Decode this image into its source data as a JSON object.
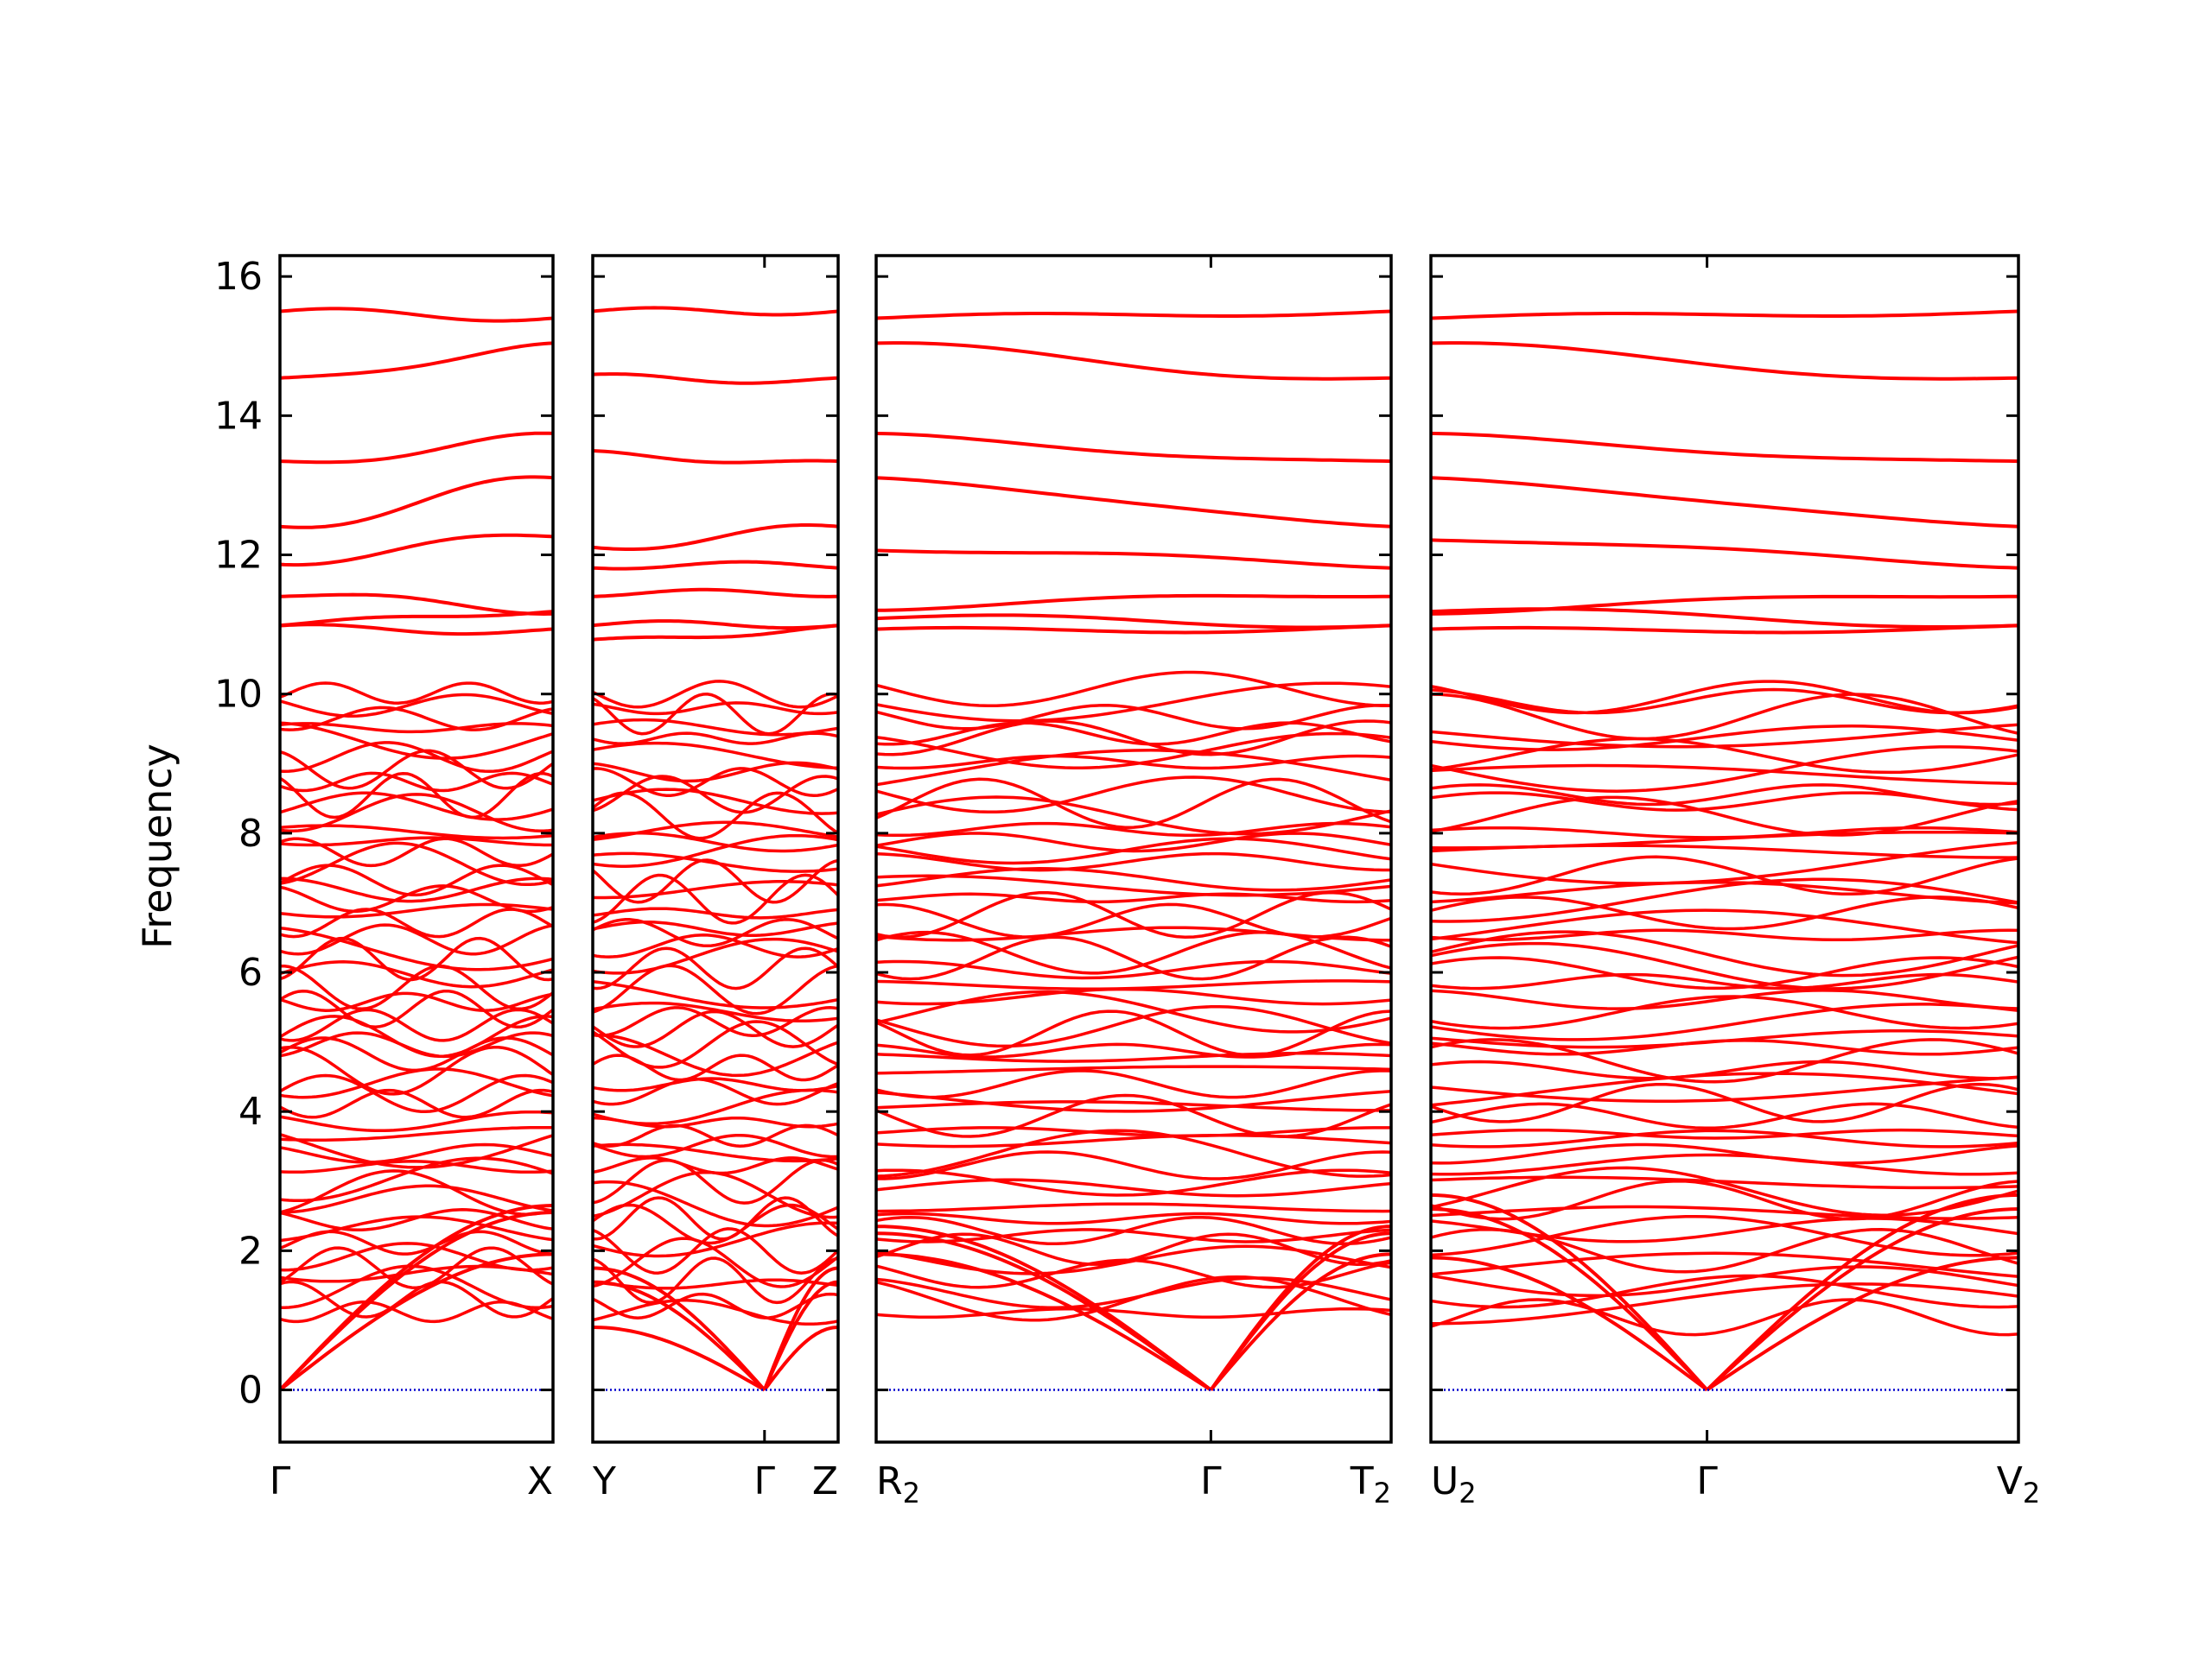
{
  "chart_data": {
    "type": "line",
    "ylabel": "Frequency",
    "ylim": [
      -0.75,
      16.3
    ],
    "yticks": [
      0,
      2,
      4,
      6,
      8,
      10,
      12,
      14,
      16
    ],
    "grid": false,
    "colors": {
      "band": "#ff0000",
      "zero_line": "#0000cd",
      "axes": "#000000"
    },
    "x_labels": [
      {
        "base": "Γ",
        "sub": ""
      },
      {
        "base": "X",
        "sub": ""
      },
      {
        "base": "Y",
        "sub": ""
      },
      {
        "base": "Γ",
        "sub": ""
      },
      {
        "base": "Z",
        "sub": ""
      },
      {
        "base": "R",
        "sub": "2"
      },
      {
        "base": "Γ",
        "sub": ""
      },
      {
        "base": "T",
        "sub": "2"
      },
      {
        "base": "U",
        "sub": "2"
      },
      {
        "base": "Γ",
        "sub": ""
      },
      {
        "base": "V",
        "sub": "2"
      }
    ],
    "panels": [
      {
        "name": "Γ-X",
        "x_ticks": [
          "Γ",
          "X"
        ],
        "high": [
          {
            "start": 15.5,
            "end": 15.4
          },
          {
            "start": 14.5,
            "end": 15.0
          },
          {
            "start": 13.3,
            "end": 13.7
          },
          {
            "start": 12.4,
            "end": 13.1
          },
          {
            "start": 11.9,
            "end": 12.3
          },
          {
            "start": 11.45,
            "end": 11.2
          },
          {
            "start": 11.0,
            "end": 11.2
          },
          {
            "start": 10.95,
            "end": 10.9
          }
        ],
        "acoustic_ends": [
          1.95,
          2.55,
          2.65
        ],
        "optical_count": 52
      },
      {
        "name": "Y-Γ-Z",
        "x_ticks": [
          "Y",
          "Γ",
          "Z"
        ],
        "high": [
          {
            "start": 15.5,
            "end": 15.5
          },
          {
            "start": 14.55,
            "end": 14.5
          },
          {
            "start": 13.45,
            "end": 13.3
          },
          {
            "start": 12.1,
            "end": 12.4
          },
          {
            "start": 11.85,
            "end": 11.85
          },
          {
            "start": 11.45,
            "end": 11.45
          },
          {
            "start": 11.0,
            "end": 11.0
          },
          {
            "start": 10.75,
            "end": 10.95
          }
        ],
        "acoustic_ends": [
          0.9,
          1.55,
          1.75
        ],
        "optical_count": 52
      },
      {
        "name": "R2-Γ-T2",
        "x_ticks": [
          "R2",
          "Γ",
          "T2"
        ],
        "high": [
          {
            "start": 15.4,
            "end": 15.5
          },
          {
            "start": 15.0,
            "end": 14.5
          },
          {
            "start": 13.7,
            "end": 13.3
          },
          {
            "start": 13.1,
            "end": 12.4
          },
          {
            "start": 12.1,
            "end": 11.85
          },
          {
            "start": 11.25,
            "end": 11.45
          },
          {
            "start": 11.1,
            "end": 11.0
          },
          {
            "start": 10.9,
            "end": 10.95
          }
        ],
        "acoustic_ends": [
          1.95,
          2.25,
          2.35
        ],
        "optical_count": 52
      },
      {
        "name": "U2-Γ-V2",
        "x_ticks": [
          "U2",
          "Γ",
          "V2"
        ],
        "high": [
          {
            "start": 15.4,
            "end": 15.5
          },
          {
            "start": 15.0,
            "end": 14.5
          },
          {
            "start": 13.7,
            "end": 13.3
          },
          {
            "start": 13.1,
            "end": 12.4
          },
          {
            "start": 12.25,
            "end": 11.85
          },
          {
            "start": 11.2,
            "end": 11.45
          },
          {
            "start": 11.2,
            "end": 11.0
          },
          {
            "start": 10.9,
            "end": 10.95
          }
        ],
        "acoustic_ends": [
          1.9,
          2.6,
          2.8
        ],
        "optical_count": 52
      }
    ]
  }
}
